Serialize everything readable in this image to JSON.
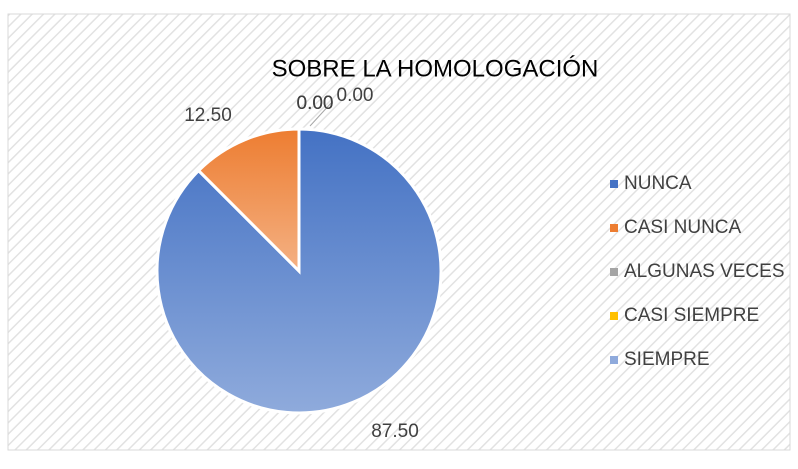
{
  "chart_data": {
    "type": "pie",
    "title": "SOBRE LA HOMOLOGACIÓN",
    "categories": [
      "NUNCA",
      "CASI NUNCA",
      "ALGUNAS VECES",
      "CASI SIEMPRE",
      "SIEMPRE"
    ],
    "values": [
      87.5,
      12.5,
      0,
      0,
      0
    ],
    "value_labels": [
      "87.50",
      "12.50",
      "0.00",
      "0.00",
      "0.00"
    ],
    "colors": [
      "#4472c4",
      "#ed7d31",
      "#a5a5a5",
      "#ffc000",
      "#8faadc"
    ],
    "legend": "right"
  }
}
